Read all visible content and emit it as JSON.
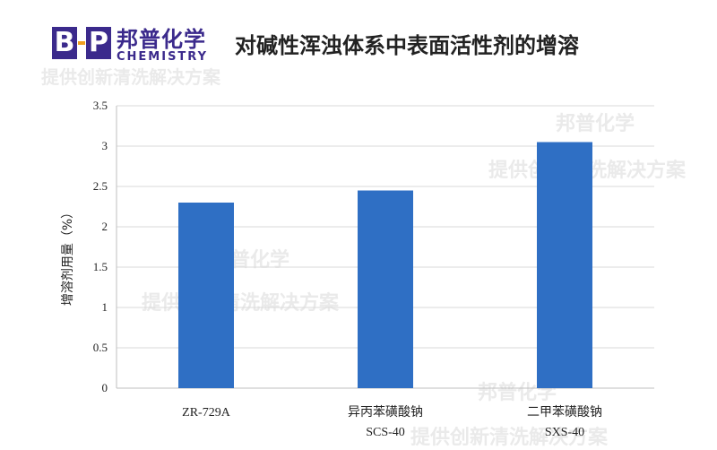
{
  "header": {
    "logo_text_cn": "邦普化学",
    "logo_text_en": "CHEMISTRY",
    "logo_letter_b": "B",
    "logo_letter_p": "P",
    "title": "对碱性浑浊体系中表面活性剂的增溶"
  },
  "watermarks": {
    "brand": "邦普化学",
    "slogan": "提供创新清洗解决方案"
  },
  "colors": {
    "bar": "#2f6fc4",
    "brand": "#3b2a8c",
    "accent": "#f0a020"
  },
  "chart_data": {
    "type": "bar",
    "categories": [
      [
        "ZR-729A"
      ],
      [
        "异丙苯磺酸钠",
        "SCS-40"
      ],
      [
        "二甲苯磺酸钠",
        "SXS-40"
      ]
    ],
    "values": [
      2.3,
      2.45,
      3.05
    ],
    "ylabel": "增溶剂用量（%）",
    "ylim": [
      0,
      3.5
    ],
    "yticks": [
      "0",
      "0.5",
      "1",
      "1.5",
      "2",
      "2.5",
      "3",
      "3.5"
    ],
    "grid": true,
    "legend": "none"
  }
}
